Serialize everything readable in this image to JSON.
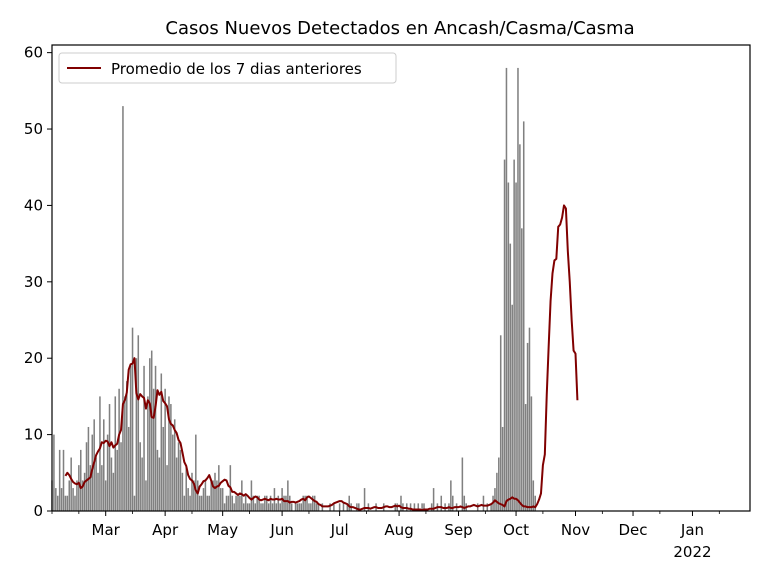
{
  "chart_data": {
    "type": "bar",
    "title": "Casos Nuevos Detectados en Ancash/Casma/Casma",
    "xlabel": "",
    "ylabel": "",
    "ylim": [
      0,
      61
    ],
    "yticks": [
      0,
      10,
      20,
      30,
      40,
      50,
      60
    ],
    "xticks": [
      {
        "date": "2021-03-01",
        "label": "Mar"
      },
      {
        "date": "2021-04-01",
        "label": "Apr"
      },
      {
        "date": "2021-05-01",
        "label": "May"
      },
      {
        "date": "2021-06-01",
        "label": "Jun"
      },
      {
        "date": "2021-07-01",
        "label": "Jul"
      },
      {
        "date": "2021-08-01",
        "label": "Aug"
      },
      {
        "date": "2021-09-01",
        "label": "Sep"
      },
      {
        "date": "2021-10-01",
        "label": "Oct"
      },
      {
        "date": "2021-11-01",
        "label": "Nov"
      },
      {
        "date": "2021-12-01",
        "label": "Dec"
      },
      {
        "date": "2022-01-01",
        "label": "Jan",
        "sublabel": "2022"
      }
    ],
    "xlim": [
      "2021-02-01",
      "2022-01-31"
    ],
    "legend": {
      "label": "Promedio de los 7 dias anteriores",
      "placement": "top-left"
    },
    "colors": {
      "bars": "#808080",
      "line": "#800000"
    },
    "grid": false,
    "series": [
      {
        "kind": "bar",
        "segments": [
          {
            "start": "2021-02-01",
            "values": [
              4,
              10,
              3,
              2,
              8,
              3,
              8,
              2,
              2,
              4,
              7,
              3,
              2,
              4,
              6,
              8,
              4,
              5,
              9,
              11,
              6,
              10,
              12,
              7,
              5,
              15,
              6,
              12,
              4,
              10,
              14,
              7,
              5,
              15,
              8,
              16,
              9,
              53,
              15,
              17,
              11,
              19,
              24,
              2,
              20,
              23,
              9,
              7,
              19,
              4,
              15,
              20,
              21,
              16,
              19,
              8,
              7,
              18,
              11,
              16,
              6,
              15,
              14,
              10,
              12,
              7,
              9,
              8,
              5,
              2,
              6,
              3,
              2,
              5,
              4,
              10,
              4,
              2,
              2,
              3,
              4,
              2,
              2,
              4,
              4,
              5,
              4,
              6,
              3,
              3,
              1,
              2,
              2,
              6,
              2,
              1,
              2,
              2,
              2,
              4,
              1,
              2,
              1,
              1,
              4,
              2,
              1,
              2,
              2,
              1,
              1,
              2,
              2,
              1,
              2,
              1,
              3,
              1,
              2,
              1,
              3,
              2,
              2,
              4,
              2,
              1,
              0,
              1,
              1,
              1,
              1,
              2,
              2,
              2,
              1,
              1,
              2,
              2,
              1,
              1,
              0,
              1,
              0,
              0,
              0,
              1,
              0,
              1,
              0,
              0,
              1,
              0,
              1,
              0,
              1,
              2,
              1,
              0,
              0,
              1,
              1,
              0,
              0,
              3,
              0,
              1,
              0,
              0,
              0,
              1,
              0,
              0,
              0,
              1,
              0,
              0,
              0,
              0,
              0,
              1,
              1,
              0,
              2,
              1,
              0,
              1,
              0,
              1,
              0,
              1,
              0,
              1,
              0,
              1,
              1,
              0,
              0,
              0,
              1,
              3,
              0,
              1,
              0,
              2,
              0,
              1,
              0,
              1,
              4,
              2,
              0,
              1,
              0,
              0,
              7,
              2,
              1,
              0,
              0,
              0,
              0,
              0,
              1,
              0,
              0,
              2,
              0,
              1,
              0,
              1,
              2,
              3,
              5,
              7,
              23,
              11,
              46,
              58,
              43,
              35,
              27,
              46,
              43,
              58,
              48,
              37,
              51,
              14,
              22,
              24,
              15,
              4,
              2
            ]
          }
        ]
      },
      {
        "kind": "line",
        "name": "Promedio de los 7 dias anteriores",
        "segments": [
          {
            "start": "2021-02-08",
            "values": [
              4.6,
              5,
              4.7,
              4.2,
              3.8,
              3.6,
              3.5,
              3.7,
              3,
              3.2,
              3.8,
              4,
              4.2,
              4.4,
              5.5,
              6.4,
              7.3,
              7.8,
              8.2,
              9,
              8.9,
              9.2,
              9.1,
              8.5,
              9,
              8.3,
              8.6,
              8.8,
              10,
              10.6,
              14,
              14.5,
              15.5,
              18.5,
              19.2,
              19.3,
              20,
              15.4,
              14.6,
              15.3,
              15,
              14.8,
              13.4,
              14.5,
              14.1,
              12.3,
              12.2,
              13.7,
              15.8,
              15.2,
              15.6,
              14.4,
              14.1,
              13.7,
              12,
              11.4,
              11.2,
              10.6,
              10.2,
              9.3,
              8.9,
              7.7,
              6.4,
              5.9,
              4.7,
              4.2,
              4,
              3.6,
              2.7,
              2.3,
              3.2,
              3.5,
              3.9,
              4,
              4.3,
              4.7,
              4,
              3.2,
              3,
              3.2,
              3.3,
              3.7,
              3.9,
              4.1,
              4,
              3.3,
              3.1,
              2.5,
              2.5,
              2.3,
              2.1,
              2.3,
              2.2,
              2,
              2.2,
              2,
              1.7,
              1.5,
              1.7,
              1.9,
              1.8,
              1.5,
              1.4,
              1.5,
              1.6,
              1.5,
              1.4,
              1.6,
              1.5,
              1.5,
              1.6,
              1.5,
              1.5,
              1.6,
              1.3,
              1.3,
              1.3,
              1.1,
              1.2,
              1.2,
              1.1,
              1.2,
              1.3,
              1.5,
              1.6,
              1.4,
              1.8,
              1.9,
              1.7,
              1.5,
              1.3,
              1.2,
              0.9,
              0.8,
              0.6,
              0.6,
              0.6,
              0.6,
              0.7,
              0.8,
              1,
              1.1,
              1.2,
              1.3,
              1.3,
              1.1,
              1,
              0.9,
              0.6,
              0.5,
              0.5,
              0.4,
              0.3,
              0.2,
              0.2,
              0.3,
              0.4,
              0.4,
              0.4,
              0.3,
              0.4,
              0.5,
              0.5,
              0.4,
              0.4,
              0.4,
              0.5,
              0.6,
              0.6,
              0.5,
              0.5,
              0.6,
              0.7,
              0.6,
              0.7,
              0.5,
              0.4,
              0.4,
              0.4,
              0.3,
              0.3,
              0.2,
              0.2,
              0.2,
              0.2,
              0.2,
              0.1,
              0.2,
              0.2,
              0.2,
              0.3,
              0.3,
              0.3,
              0.4,
              0.5,
              0.5,
              0.5,
              0.4,
              0.4,
              0.4,
              0.5,
              0.4,
              0.4,
              0.5,
              0.5,
              0.5,
              0.6,
              0.5,
              0.4,
              0.5,
              0.6,
              0.6,
              0.7,
              0.8,
              0.7,
              0.6,
              0.7,
              0.8,
              0.7,
              0.7,
              0.7,
              0.8,
              0.9,
              1.1,
              1.4,
              1.2,
              1,
              0.9,
              0.8,
              0.6,
              1.3,
              1.5,
              1.6,
              1.8,
              1.6,
              1.6,
              1.4,
              1.1,
              0.8,
              0.6,
              0.6,
              0.5,
              0.5,
              0.5,
              0.6,
              0.5,
              0.9,
              1.5,
              2.3,
              6,
              7.4,
              15.2,
              21.5,
              27.5,
              31.1,
              32.8,
              33,
              37.2,
              37.5,
              38.4,
              40,
              39.6,
              34,
              30,
              25,
              21,
              20.6,
              14.5
            ]
          }
        ]
      }
    ]
  }
}
